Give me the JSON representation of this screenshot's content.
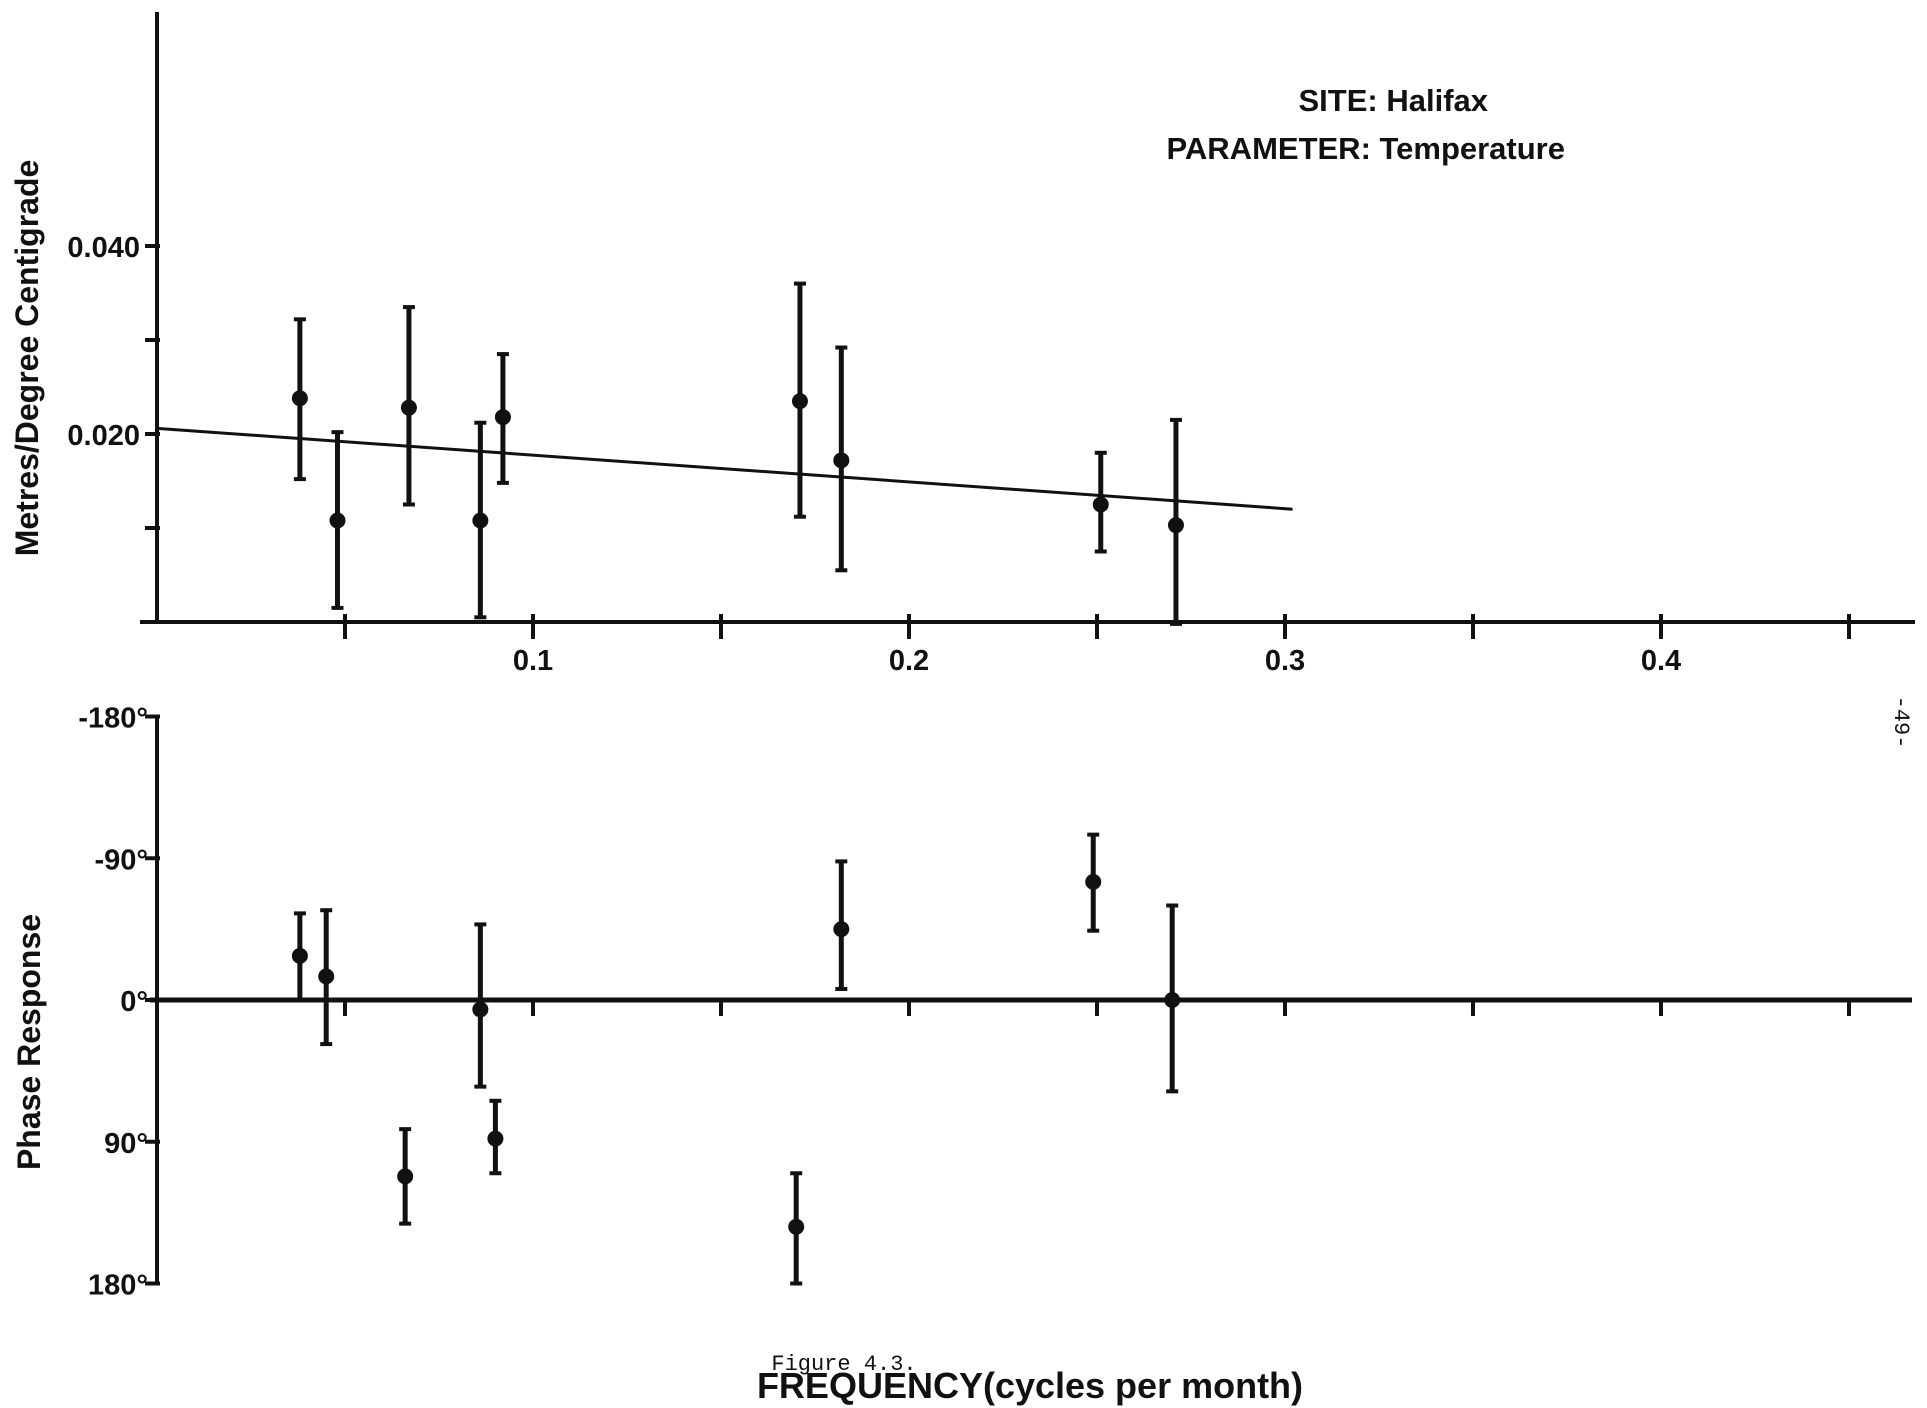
{
  "chart_data": [
    {
      "type": "scatter",
      "annotation": [
        "SITE: Halifax",
        "PARAMETER: Temperature"
      ],
      "ylabel": "Metres/Degree Centigrade",
      "xlabel": "",
      "xlim": [
        0,
        0.47
      ],
      "ylim": [
        0,
        0.05
      ],
      "xticks": [
        0.05,
        0.1,
        0.15,
        0.2,
        0.25,
        0.3,
        0.35,
        0.4,
        0.45
      ],
      "xtick_labels": [
        {
          "x": 0.1,
          "label": "0.1"
        },
        {
          "x": 0.2,
          "label": "0.2"
        },
        {
          "x": 0.3,
          "label": "0.3"
        },
        {
          "x": 0.4,
          "label": "0.4"
        }
      ],
      "yticks": [
        0.01,
        0.02,
        0.03,
        0.04
      ],
      "ytick_labels": [
        {
          "y": 0.02,
          "label": "0.020"
        },
        {
          "y": 0.04,
          "label": "0.040"
        }
      ],
      "points": [
        {
          "x": 0.038,
          "y": 0.0238,
          "lo": 0.0152,
          "hi": 0.0322
        },
        {
          "x": 0.048,
          "y": 0.0108,
          "lo": 0.0015,
          "hi": 0.0202
        },
        {
          "x": 0.067,
          "y": 0.0228,
          "lo": 0.0125,
          "hi": 0.0335
        },
        {
          "x": 0.086,
          "y": 0.0108,
          "lo": 0.0005,
          "hi": 0.0212
        },
        {
          "x": 0.092,
          "y": 0.0218,
          "lo": 0.0148,
          "hi": 0.0285
        },
        {
          "x": 0.171,
          "y": 0.0235,
          "lo": 0.0112,
          "hi": 0.036
        },
        {
          "x": 0.182,
          "y": 0.0172,
          "lo": 0.0055,
          "hi": 0.0292
        },
        {
          "x": 0.251,
          "y": 0.0125,
          "lo": 0.0075,
          "hi": 0.018
        },
        {
          "x": 0.271,
          "y": 0.0103,
          "lo": -0.0002,
          "hi": 0.0215
        }
      ],
      "fit_line": {
        "x": [
          0,
          0.302
        ],
        "y": [
          0.0206,
          0.012
        ]
      }
    },
    {
      "type": "scatter",
      "ylabel": "Phase  Response",
      "xlabel": "FREQUENCY(cycles per month)",
      "xlim": [
        0,
        0.47
      ],
      "ylim": [
        180,
        -180
      ],
      "xticks": [
        0.05,
        0.1,
        0.15,
        0.2,
        0.25,
        0.3,
        0.35,
        0.4,
        0.45
      ],
      "ytick_labels": [
        {
          "y": -180,
          "label": "-180°"
        },
        {
          "y": -90,
          "label": "-90°"
        },
        {
          "y": 0,
          "label": "0°"
        },
        {
          "y": 90,
          "label": "90°"
        },
        {
          "y": 180,
          "label": "180°"
        }
      ],
      "points": [
        {
          "x": 0.038,
          "y": -28,
          "lo": -55,
          "hi": 0
        },
        {
          "x": 0.045,
          "y": -15,
          "lo": -57,
          "hi": 28
        },
        {
          "x": 0.066,
          "y": 112,
          "lo": 82,
          "hi": 142
        },
        {
          "x": 0.086,
          "y": 6,
          "lo": -48,
          "hi": 55
        },
        {
          "x": 0.09,
          "y": 88,
          "lo": 64,
          "hi": 110
        },
        {
          "x": 0.17,
          "y": 144,
          "lo": 110,
          "hi": 180
        },
        {
          "x": 0.182,
          "y": -45,
          "lo": -88,
          "hi": -7
        },
        {
          "x": 0.249,
          "y": -75,
          "lo": -105,
          "hi": -44
        },
        {
          "x": 0.27,
          "y": 0,
          "lo": -60,
          "hi": 58
        }
      ]
    }
  ],
  "figure_caption": "Figure 4.3.",
  "page_number": "-49-"
}
